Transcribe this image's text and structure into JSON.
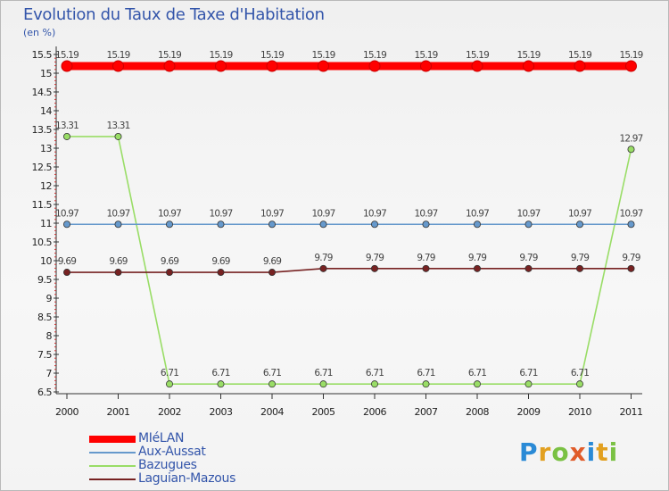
{
  "chart_data": {
    "type": "line",
    "title": "Evolution du Taux de Taxe d'Habitation",
    "ylabel": "(en %)",
    "xlabel": "",
    "ylim": [
      6.5,
      15.5
    ],
    "yticks": [
      6.5,
      7,
      7.5,
      8,
      8.5,
      9,
      9.5,
      10,
      10.5,
      11,
      11.5,
      12,
      12.5,
      13,
      13.5,
      14,
      14.5,
      15,
      15.5
    ],
    "ytick_labels": [
      "6.5",
      "7",
      "7.5",
      "8",
      "8.5",
      "9",
      "9.5",
      "10",
      "10.5",
      "11",
      "11.5",
      "12",
      "12.5",
      "13",
      "13.5",
      "14",
      "14.5",
      "15",
      "15.5"
    ],
    "categories": [
      "2000",
      "2001",
      "2002",
      "2003",
      "2004",
      "2005",
      "2006",
      "2007",
      "2008",
      "2009",
      "2010",
      "2011"
    ],
    "series": [
      {
        "name": "MIéLAN",
        "color": "#ff0000",
        "values": [
          15.19,
          15.19,
          15.19,
          15.19,
          15.19,
          15.19,
          15.19,
          15.19,
          15.19,
          15.19,
          15.19,
          15.19
        ],
        "labels": [
          "15.19",
          "15.19",
          "15.19",
          "15.19",
          "15.19",
          "15.19",
          "15.19",
          "15.19",
          "15.19",
          "15.19",
          "15.19",
          "15.19"
        ]
      },
      {
        "name": "Aux-Aussat",
        "color": "#6699cc",
        "values": [
          10.97,
          10.97,
          10.97,
          10.97,
          10.97,
          10.97,
          10.97,
          10.97,
          10.97,
          10.97,
          10.97,
          10.97
        ],
        "labels": [
          "10.97",
          "10.97",
          "10.97",
          "10.97",
          "10.97",
          "10.97",
          "10.97",
          "10.97",
          "10.97",
          "10.97",
          "10.97",
          "10.97"
        ]
      },
      {
        "name": "Bazugues",
        "color": "#99dd66",
        "values": [
          13.31,
          13.31,
          6.71,
          6.71,
          6.71,
          6.71,
          6.71,
          6.71,
          6.71,
          6.71,
          6.71,
          12.97
        ],
        "labels": [
          "13.31",
          "13.31",
          "6.71",
          "6.71",
          "6.71",
          "6.71",
          "6.71",
          "6.71",
          "6.71",
          "6.71",
          "6.71",
          "12.97"
        ]
      },
      {
        "name": "Laguian-Mazous",
        "color": "#772222",
        "values": [
          9.69,
          9.69,
          9.69,
          9.69,
          9.69,
          9.79,
          9.79,
          9.79,
          9.79,
          9.79,
          9.79,
          9.79
        ],
        "labels": [
          "9.69",
          "9.69",
          "9.69",
          "9.69",
          "9.69",
          "9.79",
          "9.79",
          "9.79",
          "9.79",
          "9.79",
          "9.79",
          "9.79"
        ]
      }
    ],
    "legend": "bottom-left"
  },
  "logo": {
    "letters": [
      "P",
      "r",
      "o",
      "x",
      "i",
      "t",
      "i"
    ]
  }
}
